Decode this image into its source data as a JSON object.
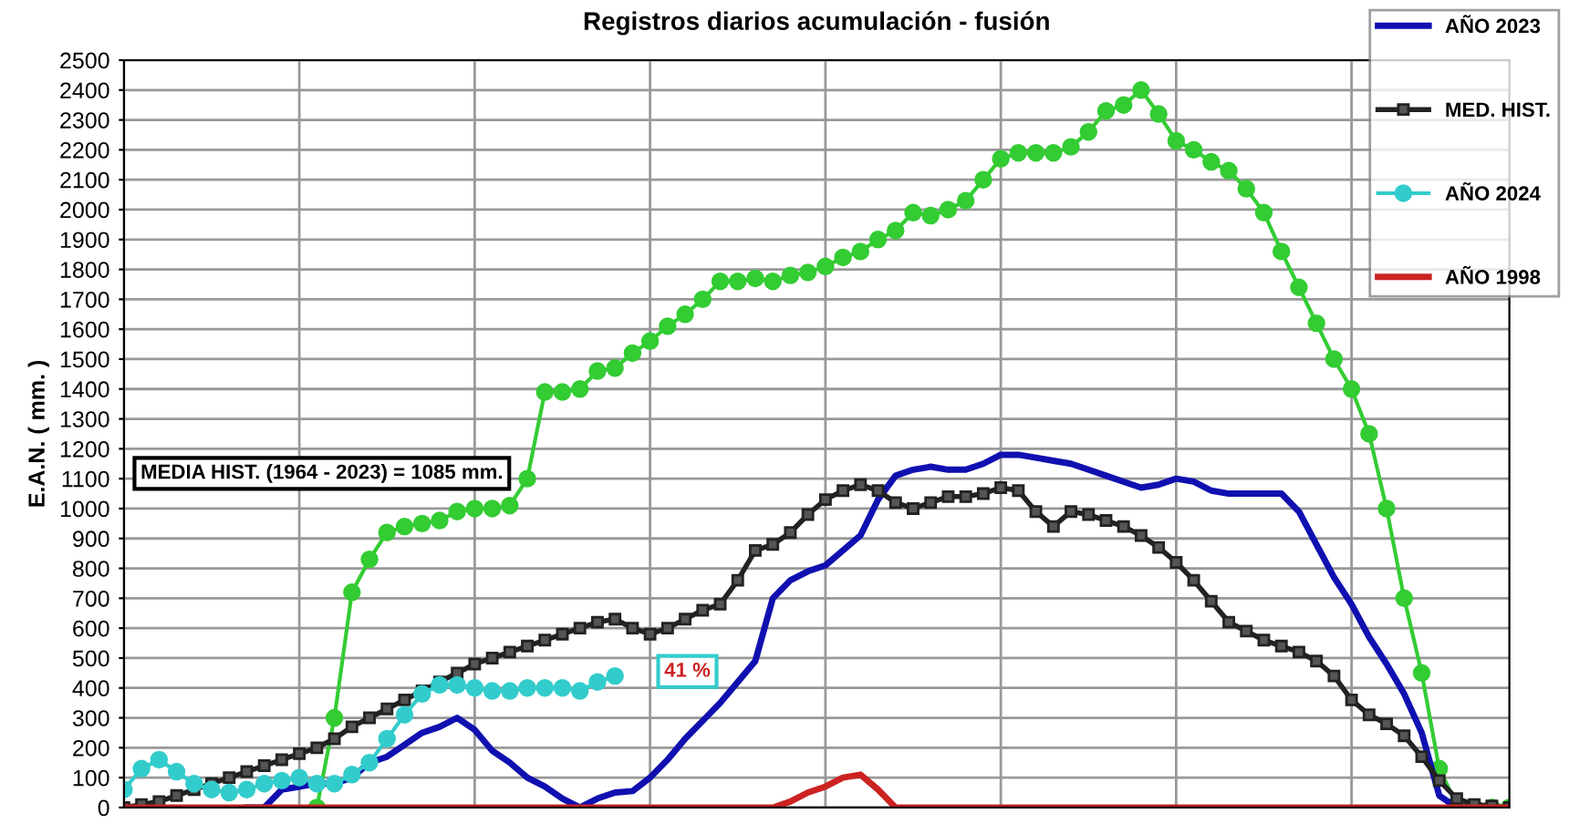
{
  "chart_data": {
    "type": "line",
    "title": "Registros diarios acumulación - fusión",
    "ylabel": "E.A.N. ( mm. )",
    "categories": [
      null,
      null,
      null,
      null,
      null,
      null,
      null,
      null,
      null,
      null,
      null,
      null,
      null,
      null,
      null,
      null,
      null,
      null,
      null,
      null,
      null,
      null,
      null,
      null,
      null,
      null,
      null,
      null,
      null,
      null,
      null,
      null,
      null,
      null,
      null,
      null,
      null,
      null,
      null,
      null,
      null,
      null,
      null,
      null,
      null,
      null,
      null,
      null,
      null,
      null,
      null,
      null,
      null,
      null,
      null,
      null,
      null,
      null,
      null,
      null,
      null,
      null,
      null,
      null,
      null,
      null,
      null,
      null,
      null,
      null,
      null,
      null,
      null,
      null,
      null,
      null,
      null,
      null,
      null,
      null
    ],
    "series": [
      {
        "color": "#33cc33",
        "marker": "circle",
        "values": [
          null,
          null,
          null,
          null,
          null,
          null,
          null,
          null,
          null,
          null,
          null,
          0,
          300,
          720,
          830,
          920,
          940,
          950,
          960,
          990,
          1000,
          1000,
          1010,
          1100,
          1390,
          1390,
          1400,
          1460,
          1470,
          1520,
          1560,
          1610,
          1650,
          1700,
          1760,
          1760,
          1770,
          1760,
          1780,
          1790,
          1810,
          1840,
          1860,
          1900,
          1930,
          1990,
          1980,
          2000,
          2030,
          2100,
          2170,
          2190,
          2190,
          2190,
          2210,
          2260,
          2330,
          2350,
          2400,
          2320,
          2230,
          2200,
          2160,
          2130,
          2070,
          1990,
          1860,
          1740,
          1620,
          1500,
          1400,
          1250,
          1000,
          700,
          450,
          130,
          10,
          0,
          0,
          0
        ]
      },
      {
        "name": "AÑO 2023",
        "color": "#1010b0",
        "marker": "none",
        "values": [
          null,
          null,
          null,
          null,
          null,
          null,
          null,
          0,
          0,
          60,
          70,
          80,
          80,
          100,
          150,
          170,
          210,
          250,
          270,
          300,
          260,
          190,
          150,
          100,
          70,
          30,
          0,
          30,
          50,
          55,
          100,
          160,
          230,
          290,
          350,
          420,
          490,
          700,
          760,
          790,
          810,
          860,
          910,
          1030,
          1110,
          1130,
          1140,
          1130,
          1130,
          1150,
          1180,
          1180,
          1170,
          1160,
          1150,
          1130,
          1110,
          1090,
          1070,
          1080,
          1100,
          1090,
          1060,
          1050,
          1050,
          1050,
          1050,
          990,
          880,
          770,
          680,
          570,
          480,
          380,
          250,
          40,
          0,
          0,
          null,
          null
        ]
      },
      {
        "name": "MED. HIST.",
        "color": "#222222",
        "marker": "square",
        "values": [
          0,
          10,
          20,
          40,
          60,
          80,
          100,
          120,
          140,
          160,
          180,
          200,
          230,
          270,
          300,
          330,
          360,
          390,
          420,
          450,
          480,
          500,
          520,
          540,
          560,
          580,
          600,
          620,
          630,
          600,
          580,
          600,
          630,
          660,
          680,
          760,
          860,
          880,
          920,
          980,
          1030,
          1060,
          1080,
          1060,
          1020,
          1000,
          1020,
          1040,
          1040,
          1050,
          1070,
          1060,
          990,
          940,
          990,
          980,
          960,
          940,
          910,
          870,
          820,
          760,
          690,
          620,
          590,
          560,
          540,
          520,
          490,
          440,
          360,
          310,
          280,
          240,
          170,
          90,
          30,
          10,
          5,
          0
        ]
      },
      {
        "name": "AÑO 2024",
        "color": "#33cccc",
        "marker": "circle",
        "values": [
          60,
          130,
          160,
          120,
          80,
          60,
          50,
          60,
          80,
          90,
          100,
          80,
          80,
          110,
          150,
          230,
          310,
          380,
          410,
          410,
          400,
          390,
          390,
          400,
          400,
          400,
          390,
          420,
          440,
          null,
          null,
          null,
          null,
          null,
          null,
          null,
          null,
          null,
          null,
          null,
          null,
          null,
          null,
          null,
          null,
          null,
          null,
          null,
          null,
          null,
          null,
          null,
          null,
          null,
          null,
          null,
          null,
          null,
          null,
          null,
          null,
          null,
          null,
          null,
          null,
          null,
          null,
          null,
          null,
          null,
          null,
          null,
          null,
          null,
          null,
          null,
          null,
          null,
          null,
          null
        ]
      },
      {
        "name": "AÑO 1998",
        "color": "#cc2222",
        "marker": "none",
        "values": [
          0,
          0,
          0,
          0,
          0,
          0,
          0,
          0,
          0,
          0,
          0,
          0,
          0,
          0,
          0,
          0,
          0,
          0,
          0,
          0,
          0,
          0,
          0,
          0,
          0,
          0,
          0,
          0,
          0,
          0,
          0,
          0,
          0,
          0,
          0,
          0,
          0,
          0,
          20,
          50,
          70,
          100,
          110,
          60,
          0,
          0,
          0,
          0,
          0,
          0,
          0,
          0,
          0,
          0,
          0,
          0,
          0,
          0,
          0,
          0,
          0,
          0,
          0,
          0,
          0,
          0,
          0,
          0,
          0,
          0,
          0,
          0,
          0,
          0,
          0,
          0,
          0,
          0,
          0,
          0
        ]
      }
    ],
    "ylim": [
      0,
      2500
    ],
    "yticks": [
      0,
      100,
      200,
      300,
      400,
      500,
      600,
      700,
      800,
      900,
      1000,
      1100,
      1200,
      1300,
      1400,
      1500,
      1600,
      1700,
      1800,
      1900,
      2000,
      2100,
      2200,
      2300,
      2400,
      2500
    ],
    "grid": true,
    "legend": "right",
    "tick_labels": "y",
    "annotations": [
      "MEDIA HIST. (1964 - 2023) = 1085 mm.",
      "41 %"
    ]
  }
}
